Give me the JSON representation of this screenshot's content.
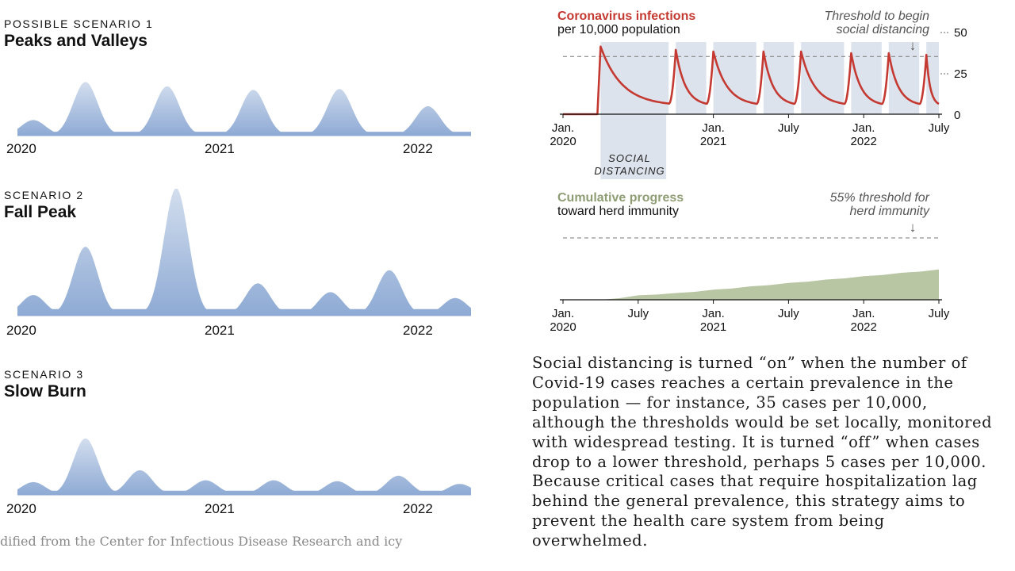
{
  "scenarios": [
    {
      "kicker": "POSSIBLE SCENARIO 1",
      "name": "Peaks and Valleys",
      "x_labels": [
        "2020",
        "2021",
        "2022"
      ],
      "chart_data": {
        "type": "area",
        "peaks": [
          {
            "t": 0.035,
            "h": 0.18
          },
          {
            "t": 0.15,
            "h": 0.62
          },
          {
            "t": 0.33,
            "h": 0.57
          },
          {
            "t": 0.52,
            "h": 0.53
          },
          {
            "t": 0.71,
            "h": 0.54
          },
          {
            "t": 0.905,
            "h": 0.34
          }
        ]
      }
    },
    {
      "kicker": "SCENARIO 2",
      "name": "Fall Peak",
      "x_labels": [
        "2020",
        "2021",
        "2022"
      ],
      "chart_data": {
        "type": "area",
        "peaks": [
          {
            "t": 0.035,
            "h": 0.14
          },
          {
            "t": 0.15,
            "h": 0.47
          },
          {
            "t": 0.35,
            "h": 0.87
          },
          {
            "t": 0.53,
            "h": 0.22
          },
          {
            "t": 0.69,
            "h": 0.16
          },
          {
            "t": 0.82,
            "h": 0.31
          },
          {
            "t": 0.965,
            "h": 0.12
          }
        ]
      }
    },
    {
      "kicker": "SCENARIO 3",
      "name": "Slow Burn",
      "x_labels": [
        "2020",
        "2021",
        "2022"
      ],
      "chart_data": {
        "type": "area",
        "peaks": [
          {
            "t": 0.035,
            "h": 0.14
          },
          {
            "t": 0.15,
            "h": 0.62
          },
          {
            "t": 0.27,
            "h": 0.27
          },
          {
            "t": 0.415,
            "h": 0.16
          },
          {
            "t": 0.565,
            "h": 0.16
          },
          {
            "t": 0.705,
            "h": 0.15
          },
          {
            "t": 0.84,
            "h": 0.21
          },
          {
            "t": 0.975,
            "h": 0.12
          }
        ]
      }
    }
  ],
  "source_text": "dified from the Center for Infectious Disease Research and icy",
  "infections": {
    "title": "Coronavirus infections",
    "subtitle": "per 10,000 population",
    "threshold_note_1": "Threshold to begin",
    "threshold_note_2": "social distancing",
    "arrow": "↓",
    "sd_label_1": "SOCIAL",
    "sd_label_2": "DISTANCING",
    "y_ticks": [
      "50",
      "25",
      "0"
    ],
    "x_ticks": [
      {
        "top": "Jan.",
        "bottom": "2020"
      },
      {
        "top": "Jan.",
        "bottom": "2021"
      },
      {
        "top": "July",
        "bottom": ""
      },
      {
        "top": "Jan.",
        "bottom": "2022"
      },
      {
        "top": "July",
        "bottom": ""
      }
    ],
    "chart_data": {
      "type": "line",
      "y_unit": "infections per 10,000 population",
      "ylim": [
        0,
        50
      ],
      "threshold": 35,
      "peaks": [
        {
          "date": "2020-04",
          "value": 41
        },
        {
          "date": "2020-10",
          "value": 39
        },
        {
          "date": "2021-01",
          "value": 38
        },
        {
          "date": "2021-05",
          "value": 38
        },
        {
          "date": "2021-08",
          "value": 38
        },
        {
          "date": "2021-12",
          "value": 37
        },
        {
          "date": "2022-03",
          "value": 37
        },
        {
          "date": "2022-06",
          "value": 36
        }
      ],
      "trough_value": 5,
      "color": "#c43a32"
    }
  },
  "immunity": {
    "title": "Cumulative progress",
    "subtitle": "toward herd immunity",
    "threshold_note_1": "55% threshold for",
    "threshold_note_2": "herd immunity",
    "arrow": "↓",
    "x_ticks": [
      {
        "top": "Jan.",
        "bottom": "2020"
      },
      {
        "top": "July",
        "bottom": ""
      },
      {
        "top": "Jan.",
        "bottom": "2021"
      },
      {
        "top": "July",
        "bottom": ""
      },
      {
        "top": "Jan.",
        "bottom": "2022"
      },
      {
        "top": "July",
        "bottom": ""
      }
    ],
    "chart_data": {
      "type": "area",
      "y_unit": "percent immune",
      "threshold": 55,
      "series": [
        {
          "date": "2020-04",
          "value": 0
        },
        {
          "date": "2020-07",
          "value": 4
        },
        {
          "date": "2020-10",
          "value": 6
        },
        {
          "date": "2021-01",
          "value": 9
        },
        {
          "date": "2021-04",
          "value": 12
        },
        {
          "date": "2021-07",
          "value": 15
        },
        {
          "date": "2021-10",
          "value": 18
        },
        {
          "date": "2022-01",
          "value": 21
        },
        {
          "date": "2022-04",
          "value": 24
        },
        {
          "date": "2022-07",
          "value": 27
        }
      ],
      "color": "#b9c6a4"
    }
  },
  "paragraph": "Social distancing is turned “on” when the number of Covid-19 cases reaches a certain prevalence in the population — for instance, 35 cases per 10,000, although the thresholds would be set locally, monitored with widespread testing. It is turned “off” when cases drop to a lower threshold, perhaps 5 cases per 10,000. Because critical cases that require hospitalization lag behind the general prevalence, this strategy aims to prevent the health care system from being overwhelmed."
}
